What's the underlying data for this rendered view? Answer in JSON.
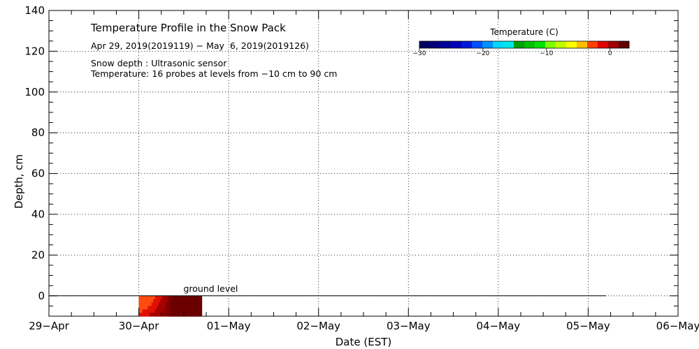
{
  "chart_data": {
    "type": "heatmap",
    "title": "Temperature Profile in the Snow Pack",
    "subtitle": "Apr 29, 2019(2019119) − May  6, 2019(2019126)",
    "notes": [
      "Snow depth : Ultrasonic sensor",
      "Temperature: 16 probes at levels from −10 cm to 90 cm"
    ],
    "xlabel": "Date (EST)",
    "ylabel": "Depth, cm",
    "x_ticks": [
      "29−Apr",
      "30−Apr",
      "01−May",
      "02−May",
      "03−May",
      "04−May",
      "05−May",
      "06−May"
    ],
    "y_ticks": [
      "0",
      "20",
      "40",
      "60",
      "80",
      "100",
      "120",
      "140"
    ],
    "y_tick_values": [
      0,
      20,
      40,
      60,
      80,
      100,
      120,
      140
    ],
    "ylim": [
      -10,
      140
    ],
    "xlim_days": [
      0,
      7
    ],
    "grid": true,
    "ground_level_label": "ground level",
    "ground_level_depth": 0,
    "ground_level_end_day": 6.2,
    "colorbar": {
      "title": "Temperature (C)",
      "ticks": [
        "−30",
        "−20",
        "−10",
        "0"
      ],
      "tick_values": [
        -30,
        -20,
        -10,
        0
      ],
      "range": [
        -30,
        3
      ],
      "colors": [
        "#000060",
        "#00007a",
        "#00009a",
        "#0000b8",
        "#0018d8",
        "#0050ff",
        "#0090ff",
        "#00d8ff",
        "#00e8e8",
        "#00a000",
        "#00c000",
        "#00e000",
        "#80ff00",
        "#c0ff00",
        "#ffff00",
        "#ffc000",
        "#ff4000",
        "#e00000",
        "#a00000",
        "#600000"
      ]
    },
    "heatmap_patch": {
      "day_start": 1.0,
      "day_end": 1.7,
      "depth_top": 0,
      "depth_bottom": -10,
      "min_temp": -1.5,
      "max_temp": 0
    }
  }
}
